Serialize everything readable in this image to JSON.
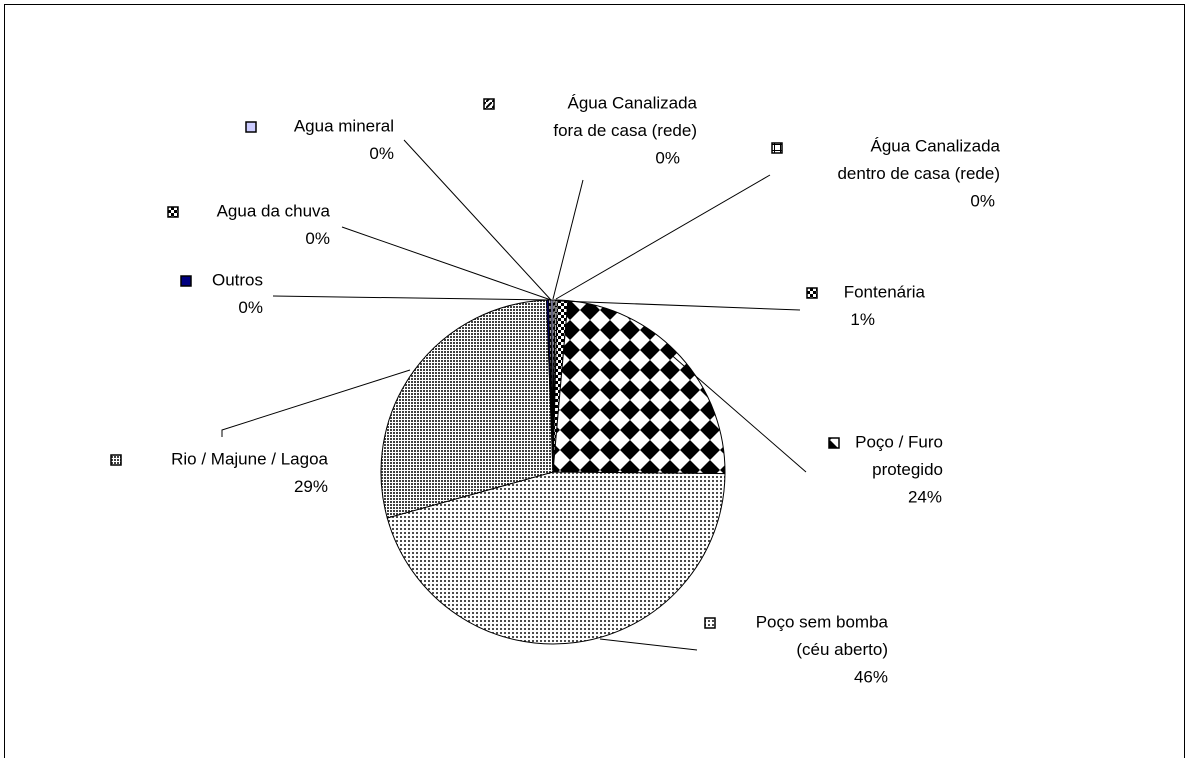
{
  "chart_data": {
    "type": "pie",
    "categories": [
      [
        "Água Canalizada",
        "fora de casa (rede)"
      ],
      [
        "Água Canalizada",
        "dentro de casa (rede)"
      ],
      [
        "Fontenária"
      ],
      [
        "Poço / Furo",
        "protegido"
      ],
      [
        "Poço sem bomba",
        "(céu aberto)"
      ],
      [
        "Rio / Majune / Lagoa"
      ],
      [
        "Outros"
      ],
      [
        "Agua da chuva"
      ],
      [
        "Agua mineral"
      ]
    ],
    "values": [
      0.2,
      0.2,
      1,
      24,
      46,
      29,
      0.2,
      0.2,
      0.2
    ],
    "value_labels": [
      "0%",
      "0%",
      "1%",
      "24%",
      "46%",
      "29%",
      "0%",
      "0%",
      "0%"
    ],
    "colors": [
      "#000000",
      "#000000",
      "#000000",
      "#000000",
      "#000000",
      "#000000",
      "#000080",
      "#000000",
      "#ccccff"
    ]
  }
}
